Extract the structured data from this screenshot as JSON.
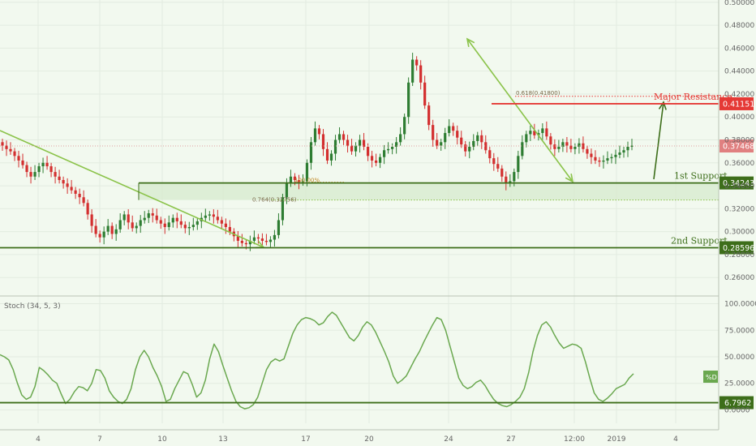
{
  "colors": {
    "background": "#f2f9ef",
    "up": "#2e7d32",
    "down": "#d32f2f",
    "support": "#3d6e1a",
    "resistance": "#e53935",
    "trend": "#8bc34a",
    "stoch": "#6aa84f",
    "price_badge": "#e08080"
  },
  "chart_data": [
    {
      "type": "candlestick",
      "title": "",
      "y_ticks": [
        "0.50000",
        "0.48000",
        "0.46000",
        "0.44000",
        "0.42000",
        "0.40000",
        "0.38000",
        "0.36000",
        "0.34000",
        "0.32000",
        "0.30000",
        "0.28000",
        "0.26000"
      ],
      "x_ticks": [
        "4",
        "7",
        "10",
        "13",
        "17",
        "20",
        "24",
        "27",
        "12:00",
        "2019",
        "4"
      ],
      "ylim": [
        0.246,
        0.502
      ],
      "current_price": {
        "label": "0.37468",
        "value": 0.37468
      },
      "levels": [
        {
          "label": "Major Resistance",
          "badge": "0.41151",
          "value": 0.41151,
          "kind": "resistance"
        },
        {
          "label": "1st Support",
          "badge": "0.34243",
          "value": 0.34243,
          "kind": "support"
        },
        {
          "label": "2nd Support",
          "badge": "0.28596",
          "value": 0.28596,
          "kind": "support"
        }
      ],
      "fib_levels": [
        {
          "label": "0.618(0.41800)",
          "value": 0.418
        },
        {
          "label": "0.764(0.32756)",
          "value": 0.32756
        },
        {
          "label": "100.00%",
          "value": 0.34243
        }
      ],
      "close": [
        0.375,
        0.372,
        0.37,
        0.366,
        0.362,
        0.358,
        0.352,
        0.348,
        0.352,
        0.357,
        0.36,
        0.357,
        0.352,
        0.348,
        0.345,
        0.342,
        0.339,
        0.336,
        0.333,
        0.33,
        0.325,
        0.315,
        0.305,
        0.298,
        0.295,
        0.3,
        0.305,
        0.298,
        0.302,
        0.31,
        0.315,
        0.308,
        0.303,
        0.305,
        0.31,
        0.312,
        0.316,
        0.314,
        0.31,
        0.307,
        0.304,
        0.308,
        0.312,
        0.309,
        0.306,
        0.303,
        0.304,
        0.306,
        0.309,
        0.312,
        0.314,
        0.315,
        0.313,
        0.31,
        0.307,
        0.304,
        0.3,
        0.296,
        0.292,
        0.29,
        0.289,
        0.292,
        0.295,
        0.294,
        0.292,
        0.291,
        0.293,
        0.297,
        0.31,
        0.33,
        0.342,
        0.348,
        0.345,
        0.343,
        0.344,
        0.36,
        0.378,
        0.39,
        0.385,
        0.372,
        0.362,
        0.368,
        0.38,
        0.385,
        0.38,
        0.375,
        0.37,
        0.375,
        0.38,
        0.374,
        0.366,
        0.362,
        0.36,
        0.365,
        0.371,
        0.372,
        0.374,
        0.378,
        0.385,
        0.4,
        0.43,
        0.45,
        0.445,
        0.43,
        0.41,
        0.393,
        0.38,
        0.375,
        0.378,
        0.386,
        0.392,
        0.388,
        0.382,
        0.376,
        0.37,
        0.374,
        0.379,
        0.384,
        0.378,
        0.371,
        0.364,
        0.359,
        0.355,
        0.348,
        0.342,
        0.344,
        0.352,
        0.366,
        0.378,
        0.385,
        0.388,
        0.384,
        0.386,
        0.39,
        0.383,
        0.376,
        0.372,
        0.374,
        0.378,
        0.375,
        0.372,
        0.374,
        0.377,
        0.372,
        0.368,
        0.365,
        0.362,
        0.361,
        0.362,
        0.364,
        0.365,
        0.367,
        0.369,
        0.371,
        0.374,
        0.375
      ],
      "stoch": {
        "label": "Stoch (34, 5, 3)",
        "y_ticks": [
          "100.0000",
          "75.0000",
          "50.0000",
          "25.0000",
          "0.0000"
        ],
        "ylim": [
          -5,
          105
        ],
        "level": {
          "badge": "6.7962",
          "value": 6.7962
        },
        "tag": "%D",
        "values": [
          52,
          50,
          47,
          38,
          25,
          14,
          10,
          12,
          22,
          40,
          37,
          33,
          28,
          25,
          15,
          6,
          10,
          17,
          22,
          21,
          18,
          25,
          38,
          37,
          30,
          18,
          12,
          8,
          6,
          10,
          20,
          38,
          50,
          56,
          50,
          40,
          32,
          22,
          8,
          10,
          20,
          28,
          36,
          34,
          24,
          12,
          16,
          28,
          48,
          62,
          55,
          42,
          30,
          18,
          8,
          3,
          1,
          2,
          5,
          12,
          25,
          38,
          45,
          48,
          46,
          48,
          60,
          72,
          80,
          85,
          87,
          86,
          84,
          80,
          82,
          88,
          92,
          89,
          82,
          75,
          68,
          65,
          70,
          78,
          83,
          80,
          73,
          64,
          55,
          45,
          32,
          25,
          28,
          32,
          40,
          48,
          55,
          64,
          72,
          80,
          87,
          85,
          75,
          60,
          45,
          30,
          23,
          20,
          22,
          26,
          28,
          23,
          16,
          10,
          6,
          4,
          3,
          5,
          8,
          12,
          20,
          35,
          55,
          70,
          80,
          83,
          78,
          70,
          63,
          58,
          60,
          62,
          61,
          58,
          45,
          30,
          16,
          10,
          8,
          11,
          15,
          20,
          22,
          24,
          30,
          34
        ]
      }
    }
  ]
}
